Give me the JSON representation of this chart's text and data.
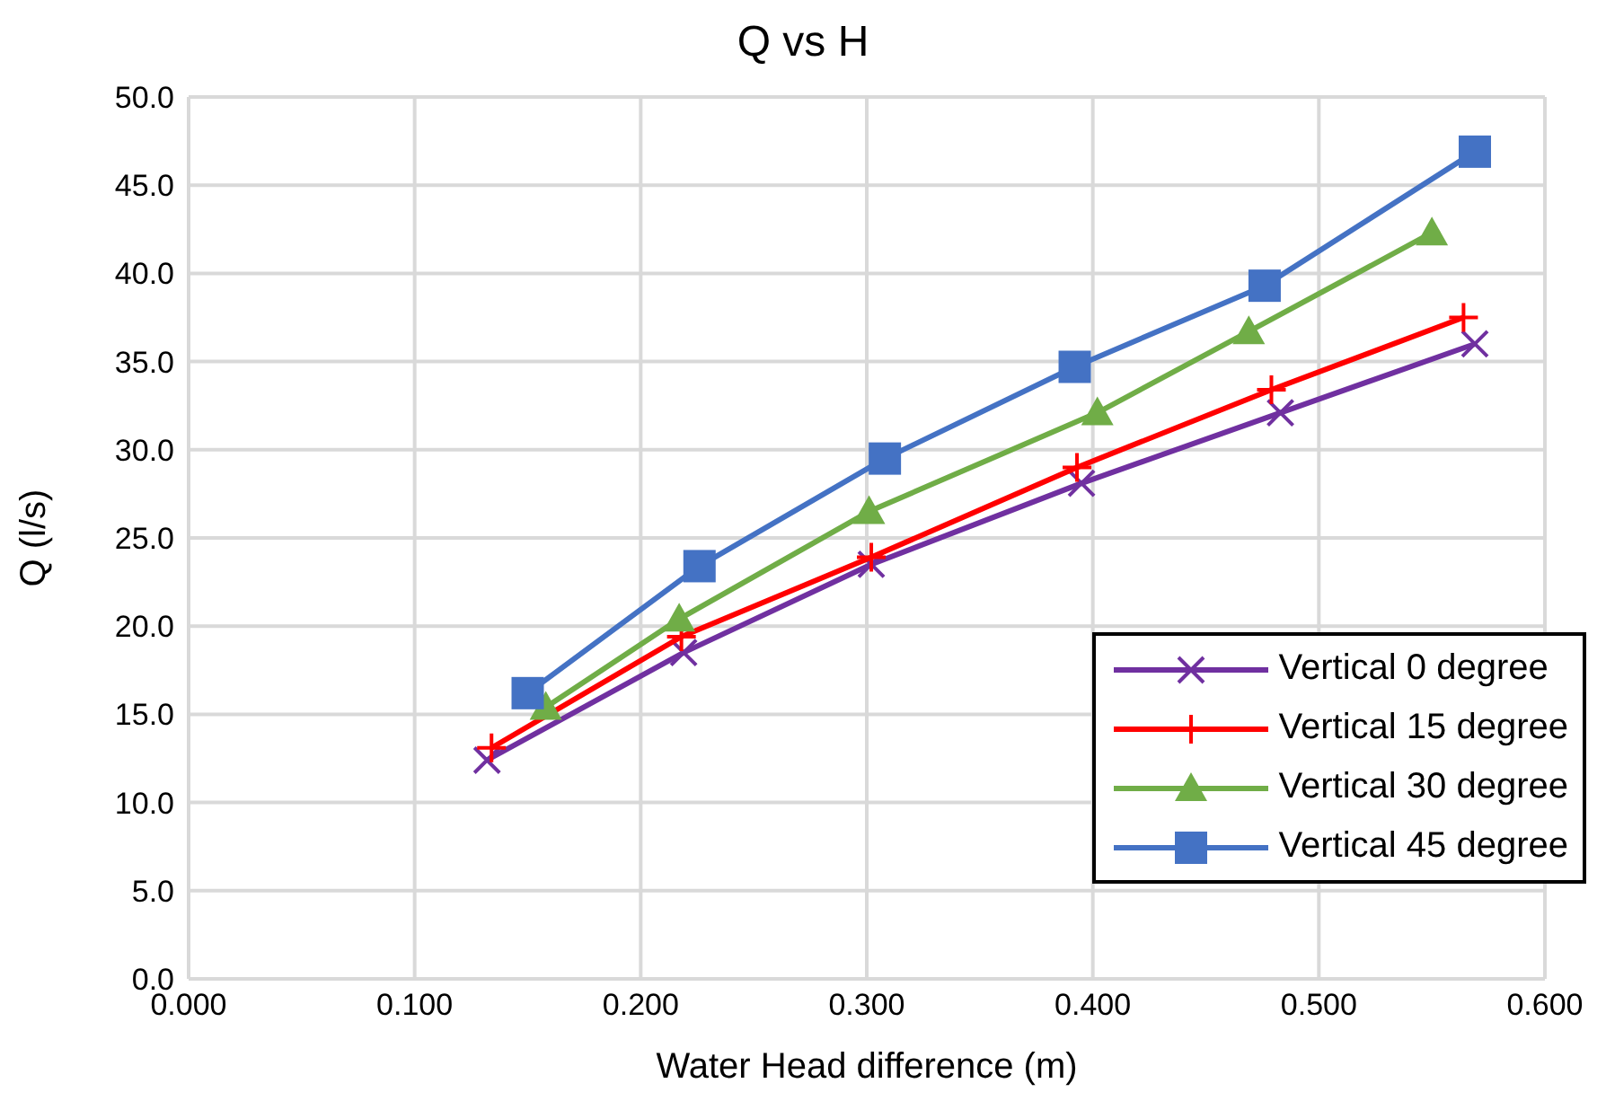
{
  "chart_data": {
    "type": "line",
    "title": "Q vs H",
    "xlabel": "Water Head difference (m)",
    "ylabel": "Q (l/s)",
    "xlim": [
      0,
      0.6
    ],
    "xticks": [
      {
        "value": 0,
        "label": "0.000"
      },
      {
        "value": 0.1,
        "label": "0.100"
      },
      {
        "value": 0.2,
        "label": "0.200"
      },
      {
        "value": 0.3,
        "label": "0.300"
      },
      {
        "value": 0.4,
        "label": "0.400"
      },
      {
        "value": 0.5,
        "label": "0.500"
      },
      {
        "value": 0.6,
        "label": "0.600"
      }
    ],
    "ylim": [
      0,
      50
    ],
    "yticks": [
      {
        "value": 0,
        "label": "0.0"
      },
      {
        "value": 5,
        "label": "5.0"
      },
      {
        "value": 10,
        "label": "10.0"
      },
      {
        "value": 15,
        "label": "15.0"
      },
      {
        "value": 20,
        "label": "20.0"
      },
      {
        "value": 25,
        "label": "25.0"
      },
      {
        "value": 30,
        "label": "30.0"
      },
      {
        "value": 35,
        "label": "35.0"
      },
      {
        "value": 40,
        "label": "40.0"
      },
      {
        "value": 45,
        "label": "45.0"
      },
      {
        "value": 50,
        "label": "50.0"
      }
    ],
    "grid": true,
    "legend": "bottom right",
    "line_style": "solid",
    "series": [
      {
        "name": "Vertical 0 degree",
        "color": "#7030a0",
        "marker": "x",
        "x": [
          0.132,
          0.219,
          0.302,
          0.395,
          0.483,
          0.569
        ],
        "values": [
          12.4,
          18.5,
          23.5,
          28.1,
          32.1,
          36.0
        ]
      },
      {
        "name": "Vertical 15 degree",
        "color": "#ff0000",
        "marker": "cross",
        "x": [
          0.134,
          0.218,
          0.302,
          0.393,
          0.479,
          0.564
        ],
        "values": [
          13.1,
          19.4,
          23.9,
          29.0,
          33.4,
          37.5
        ]
      },
      {
        "name": "Vertical 30 degree",
        "color": "#70ad47",
        "marker": "triangle",
        "x": [
          0.158,
          0.217,
          0.301,
          0.402,
          0.469,
          0.55
        ],
        "values": [
          15.4,
          20.4,
          26.5,
          32.1,
          36.7,
          42.3
        ]
      },
      {
        "name": "Vertical 45 degree",
        "color": "#4472c4",
        "marker": "square",
        "x": [
          0.15,
          0.226,
          0.308,
          0.392,
          0.476,
          0.569
        ],
        "values": [
          16.2,
          23.4,
          29.5,
          34.7,
          39.3,
          46.9
        ]
      }
    ]
  }
}
